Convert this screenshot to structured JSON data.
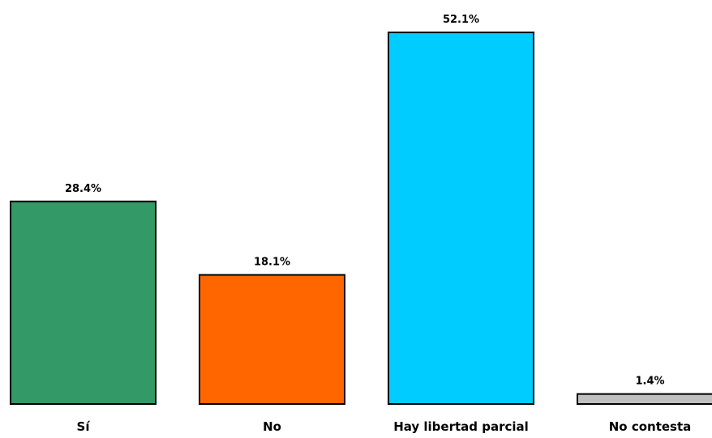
{
  "chart_data": {
    "type": "bar",
    "categories": [
      "Sí",
      "No",
      "Hay libertad parcial",
      "No contesta"
    ],
    "values": [
      28.4,
      18.1,
      52.1,
      1.4
    ],
    "data_labels": [
      "28.4%",
      "18.1%",
      "52.1%",
      "1.4%"
    ],
    "colors": [
      "#339966",
      "#ff6600",
      "#00ccff",
      "#c0c0c0"
    ],
    "ylim": [
      0,
      52.1
    ],
    "grid": false,
    "legend": "none",
    "title": "",
    "xlabel": "",
    "ylabel": ""
  }
}
